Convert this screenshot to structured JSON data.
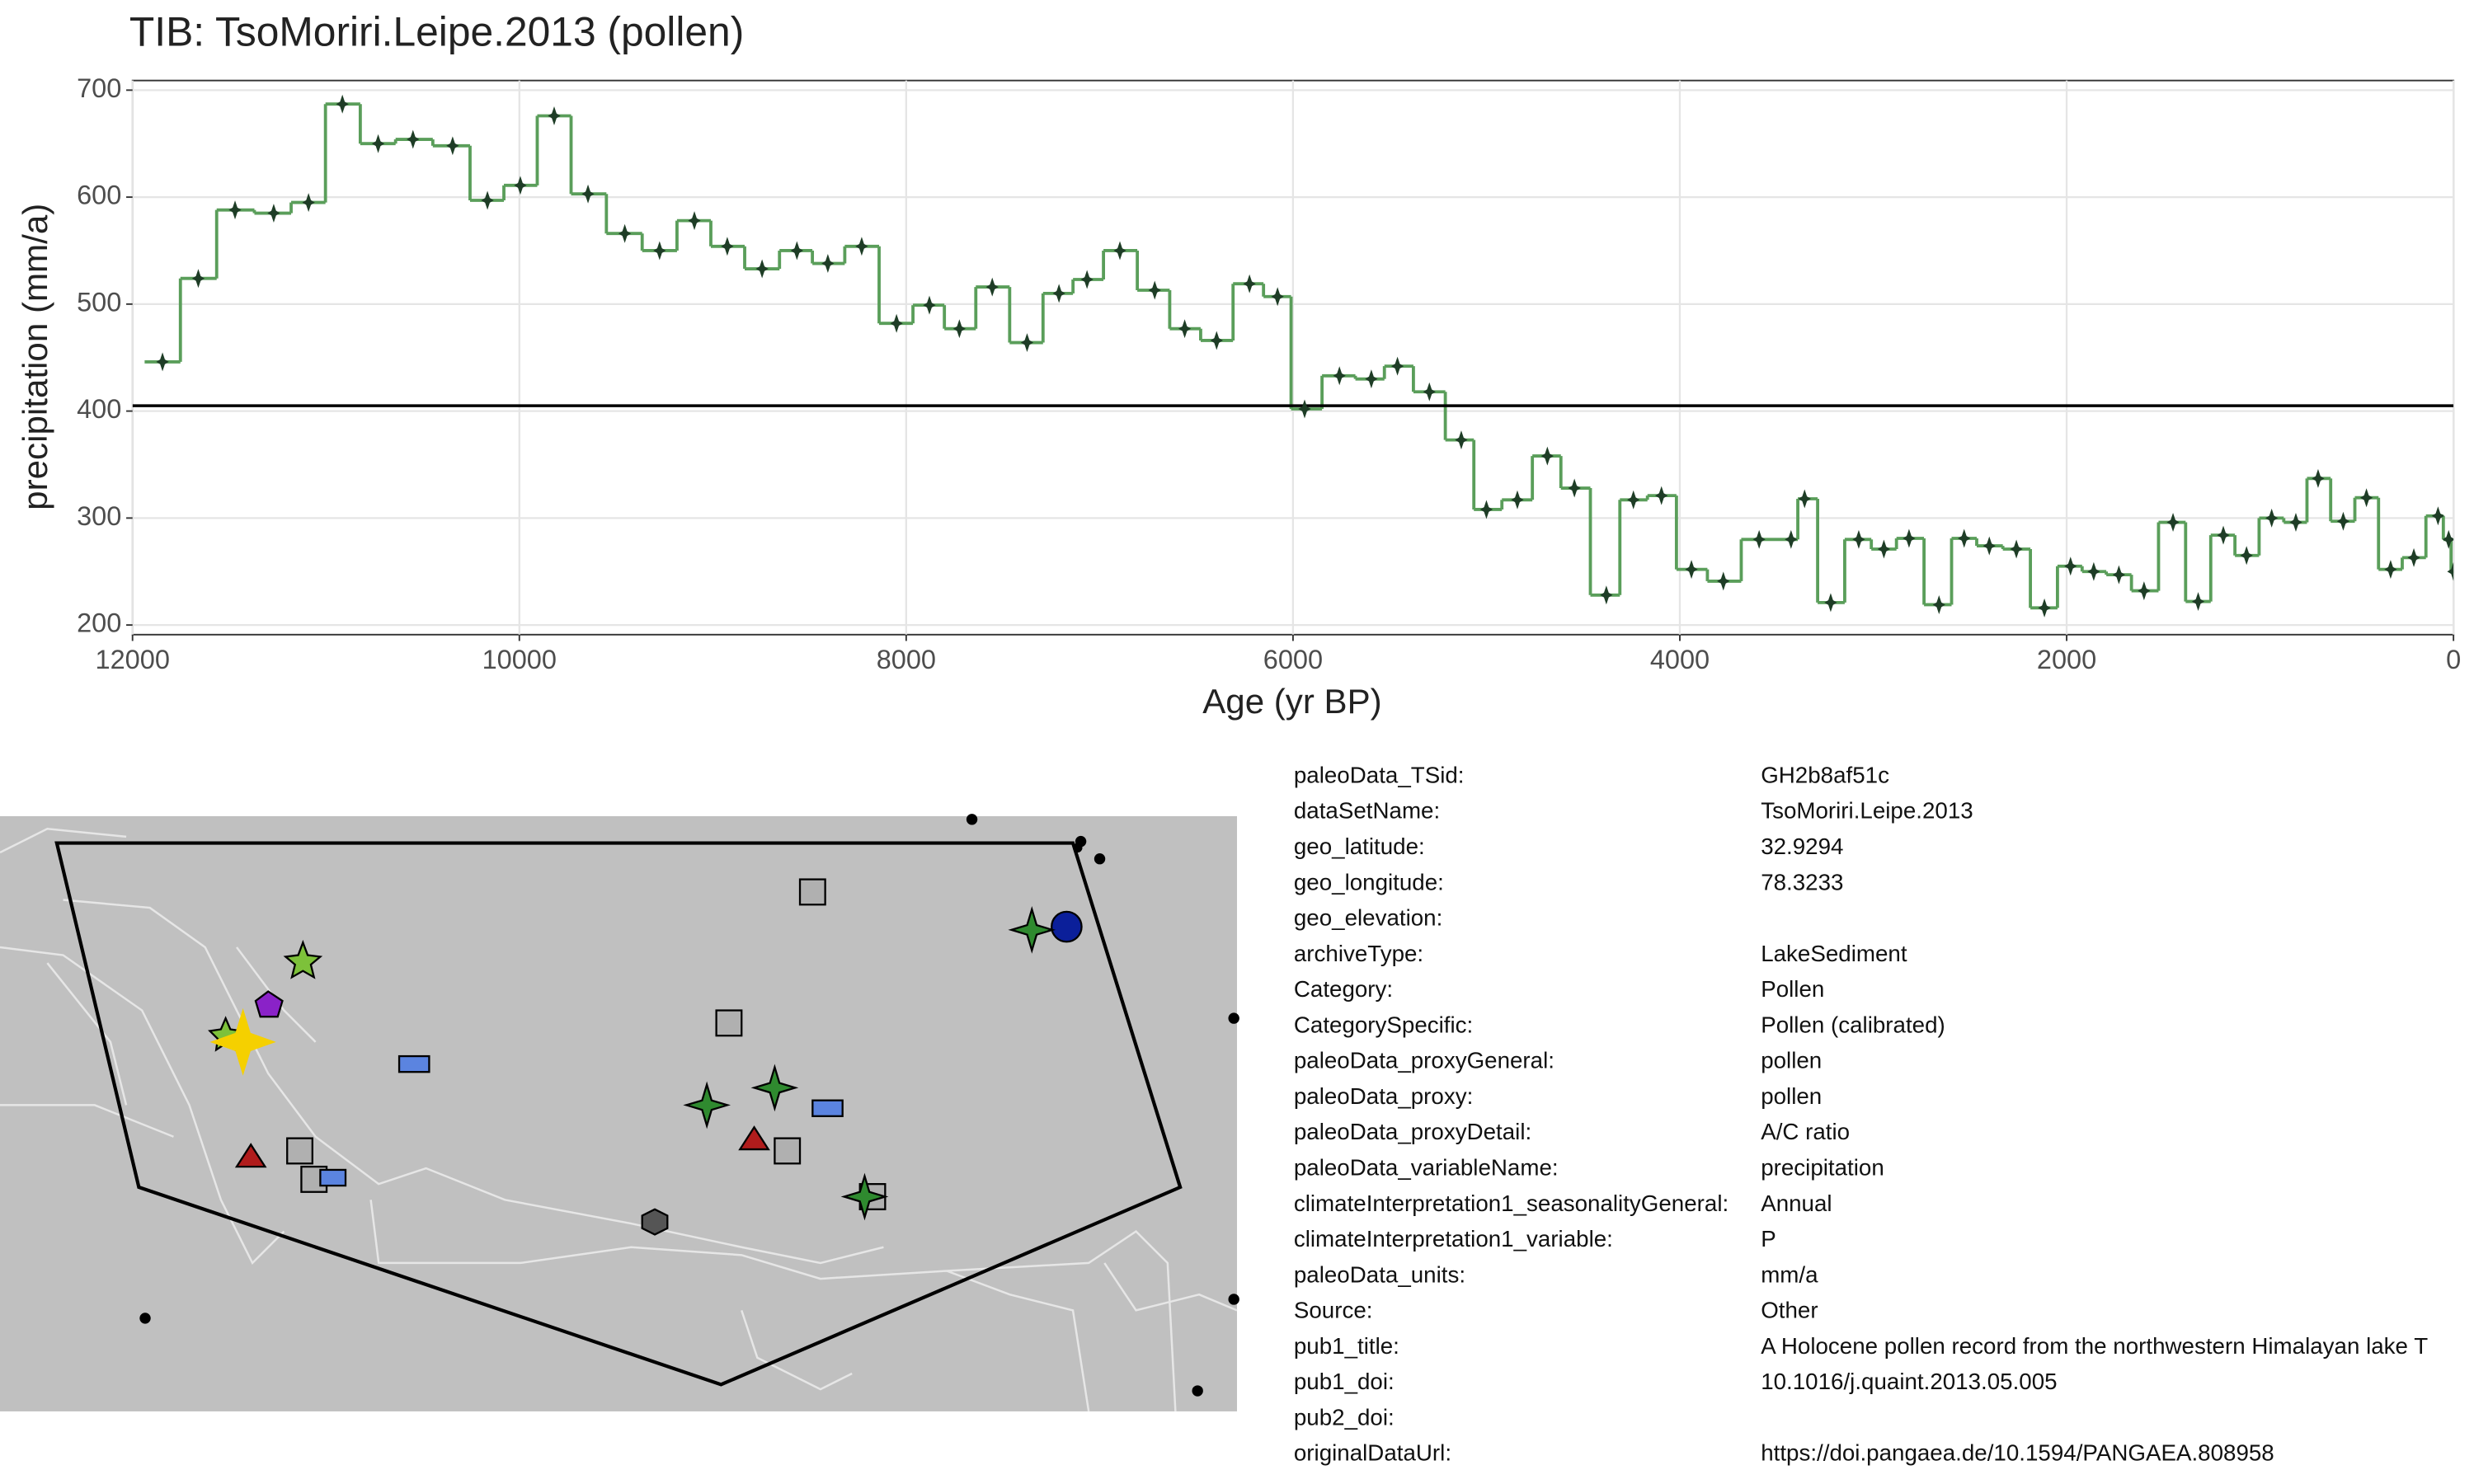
{
  "chart_data": {
    "type": "line",
    "step": true,
    "title": "TIB: TsoMoriri.Leipe.2013 (pollen)",
    "x_label": "Age (yr BP)",
    "y_label": "precipitation (mm/a)",
    "x": [
      11845,
      11660,
      11470,
      11270,
      11090,
      10915,
      10730,
      10550,
      10345,
      10165,
      9995,
      9820,
      9645,
      9455,
      9275,
      9095,
      8925,
      8745,
      8565,
      8405,
      8230,
      8050,
      7880,
      7725,
      7555,
      7375,
      7210,
      7065,
      6895,
      6715,
      6560,
      6395,
      6225,
      6080,
      5940,
      5760,
      5595,
      5460,
      5295,
      5130,
      5000,
      4840,
      4685,
      4545,
      4380,
      4240,
      4095,
      3940,
      3775,
      3590,
      3425,
      3355,
      3220,
      3075,
      2945,
      2815,
      2660,
      2530,
      2400,
      2260,
      2115,
      1980,
      1860,
      1730,
      1600,
      1450,
      1320,
      1190,
      1070,
      940,
      815,
      700,
      570,
      450,
      325,
      205,
      80,
      25,
      0
    ],
    "values": [
      446,
      524,
      588,
      585,
      595,
      687,
      650,
      654,
      648,
      597,
      611,
      676,
      603,
      566,
      550,
      578,
      554,
      533,
      550,
      538,
      554,
      482,
      499,
      477,
      516,
      464,
      510,
      523,
      550,
      513,
      477,
      466,
      519,
      507,
      402,
      433,
      430,
      442,
      418,
      373,
      308,
      317,
      358,
      328,
      228,
      317,
      321,
      252,
      241,
      280,
      280,
      318,
      221,
      280,
      271,
      281,
      219,
      281,
      274,
      271,
      216,
      255,
      250,
      247,
      232,
      296,
      222,
      284,
      265,
      300,
      296,
      337,
      297,
      319,
      252,
      263,
      302,
      280,
      250
    ],
    "color": "#5a9e5a",
    "marker_color": "#1e3d26",
    "hline": 405,
    "hline_color": "#000000",
    "xlim": [
      12000,
      0
    ],
    "ylim": [
      191,
      709
    ],
    "xticks": [
      12000,
      10000,
      8000,
      6000,
      4000,
      2000,
      0
    ],
    "yticks": [
      200,
      300,
      400,
      500,
      600,
      700
    ],
    "grid": true
  },
  "metadata": [
    {
      "key": "paleoData_TSid:",
      "value": "GH2b8af51c"
    },
    {
      "key": "dataSetName:",
      "value": "TsoMoriri.Leipe.2013"
    },
    {
      "key": "geo_latitude:",
      "value": "32.9294"
    },
    {
      "key": "geo_longitude:",
      "value": "78.3233"
    },
    {
      "key": "geo_elevation:"
    },
    {
      "key": "archiveType:",
      "value": "LakeSediment"
    },
    {
      "key": "Category:",
      "value": "Pollen"
    },
    {
      "key": "CategorySpecific:",
      "value": "Pollen (calibrated)"
    },
    {
      "key": "paleoData_proxyGeneral:",
      "value": "pollen"
    },
    {
      "key": "paleoData_proxy:",
      "value": "pollen"
    },
    {
      "key": "paleoData_proxyDetail:",
      "value": "A/C ratio"
    },
    {
      "key": "paleoData_variableName:",
      "value": "precipitation"
    },
    {
      "key": "climateInterpretation1_seasonalityGeneral:",
      "value": "Annual"
    },
    {
      "key": "climateInterpretation1_variable:",
      "value": "P"
    },
    {
      "key": "paleoData_units:",
      "value": "mm/a"
    },
    {
      "key": "Source:",
      "value": "Other"
    },
    {
      "key": "pub1_title:",
      "value": "A Holocene pollen record from the northwestern Himalayan lake T"
    },
    {
      "key": "pub1_doi:",
      "value": "10.1016/j.quaint.2013.05.005"
    },
    {
      "key": "pub2_doi:"
    },
    {
      "key": "originalDataUrl:",
      "value": "https://doi.pangaea.de/10.1594/PANGAEA.808958"
    }
  ]
}
